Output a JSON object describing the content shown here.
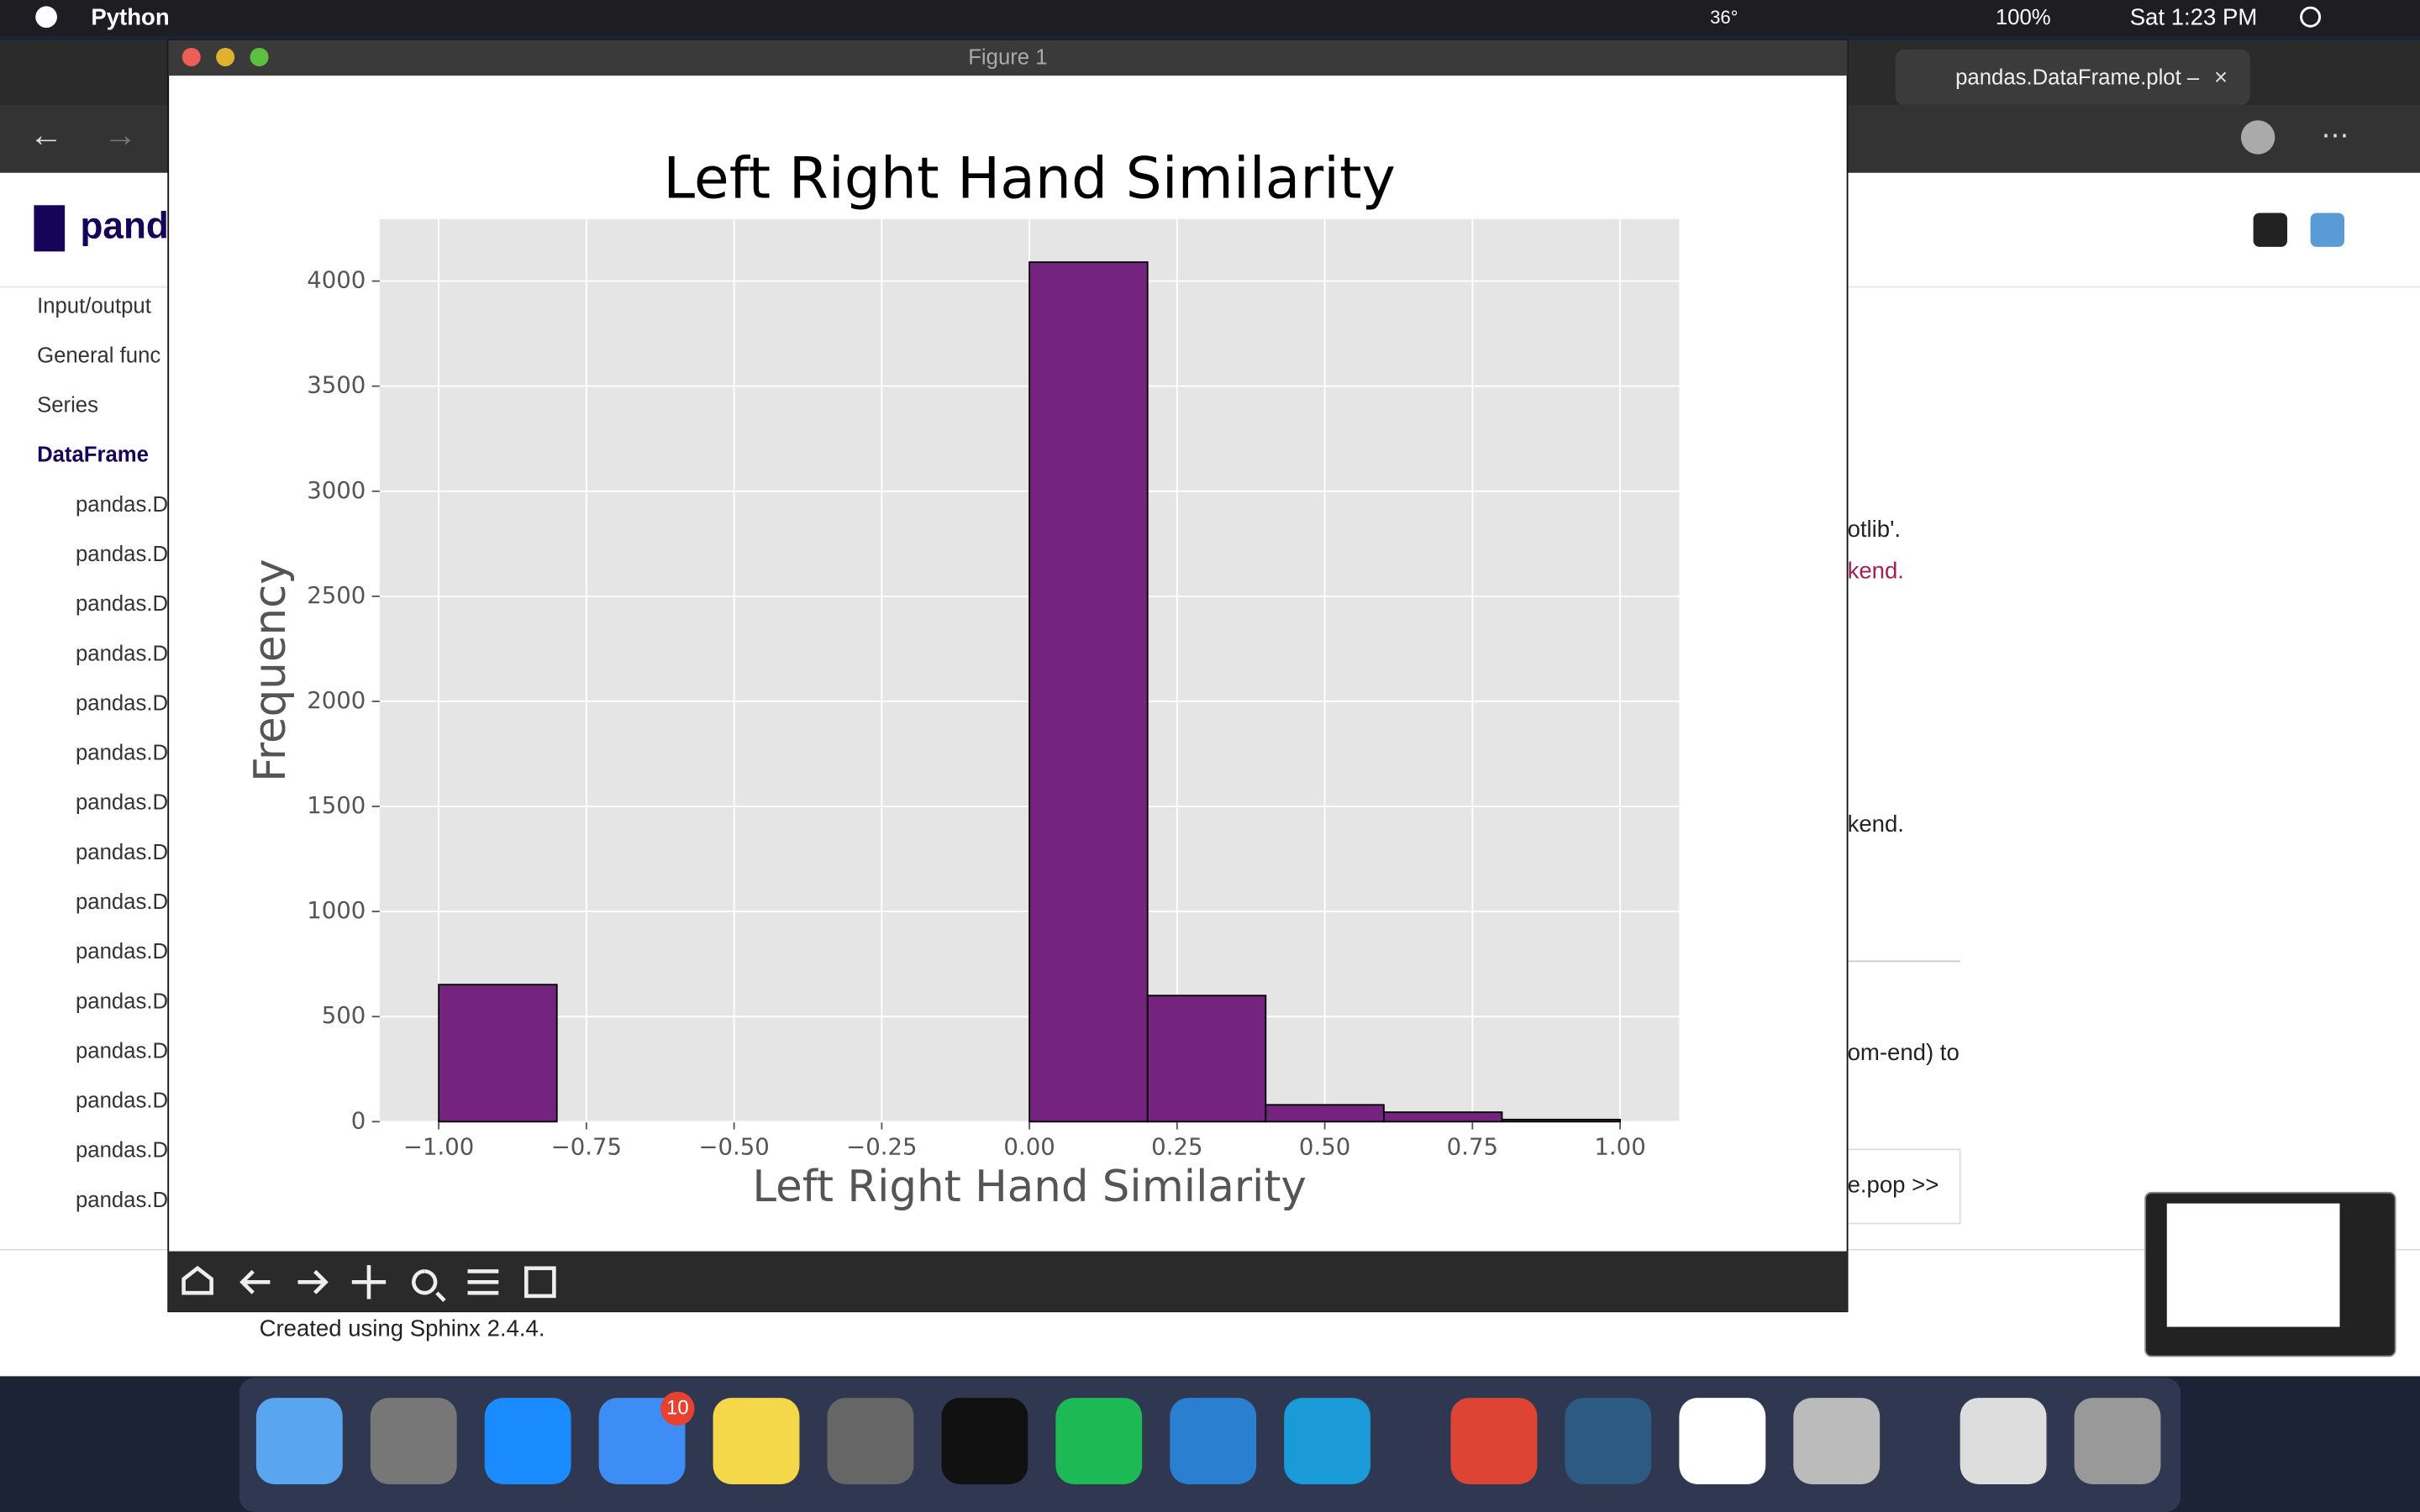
{
  "menu_bar": {
    "app": "Python",
    "temperature": "36°",
    "battery": "100%",
    "clock": "Sat 1:23 PM"
  },
  "window": {
    "title": "Figure 1"
  },
  "browser": {
    "tab": "pandas.DataFrame.plot –",
    "sidebar": [
      "Input/output",
      "General func",
      "Series",
      "DataFrame",
      "pandas.D",
      "pandas.D",
      "pandas.D",
      "pandas.D",
      "pandas.D",
      "pandas.D",
      "pandas.D",
      "pandas.D",
      "pandas.D",
      "pandas.D",
      "pandas.D",
      "pandas.D",
      "pandas.D",
      "pandas.D",
      "pandas.D"
    ],
    "fragments": [
      "otlib'.",
      "kend.",
      "kend.",
      "om-end) to",
      "e.pop >>"
    ],
    "footer": "Created using Sphinx 2.4.4."
  },
  "dock": {
    "badge": "10"
  },
  "chart_data": {
    "type": "histogram",
    "title": "Left Right Hand Similarity",
    "x_label": "Left Right Hand Similarity",
    "y_label": "Frequency",
    "bins": [
      -1.0,
      -0.8,
      -0.6,
      -0.4,
      -0.2,
      0.0,
      0.2,
      0.4,
      0.6,
      0.8,
      1.0
    ],
    "values": [
      652,
      0,
      0,
      0,
      0,
      4090,
      600,
      80,
      45,
      10
    ],
    "color": "#74237f",
    "edgecolor": "#000000",
    "xlim": [
      -1.1,
      1.1
    ],
    "ylim": [
      0,
      4295
    ],
    "xticks": [
      {
        "value": -1.0,
        "label": "−1.00"
      },
      {
        "value": -0.75,
        "label": "−0.75"
      },
      {
        "value": -0.5,
        "label": "−0.50"
      },
      {
        "value": -0.25,
        "label": "−0.25"
      },
      {
        "value": 0.0,
        "label": "0.00"
      },
      {
        "value": 0.25,
        "label": "0.25"
      },
      {
        "value": 0.5,
        "label": "0.50"
      },
      {
        "value": 0.75,
        "label": "0.75"
      },
      {
        "value": 1.0,
        "label": "1.00"
      }
    ],
    "yticks": [
      0,
      500,
      1000,
      1500,
      2000,
      2500,
      3000,
      3500,
      4000
    ],
    "grid": true
  }
}
